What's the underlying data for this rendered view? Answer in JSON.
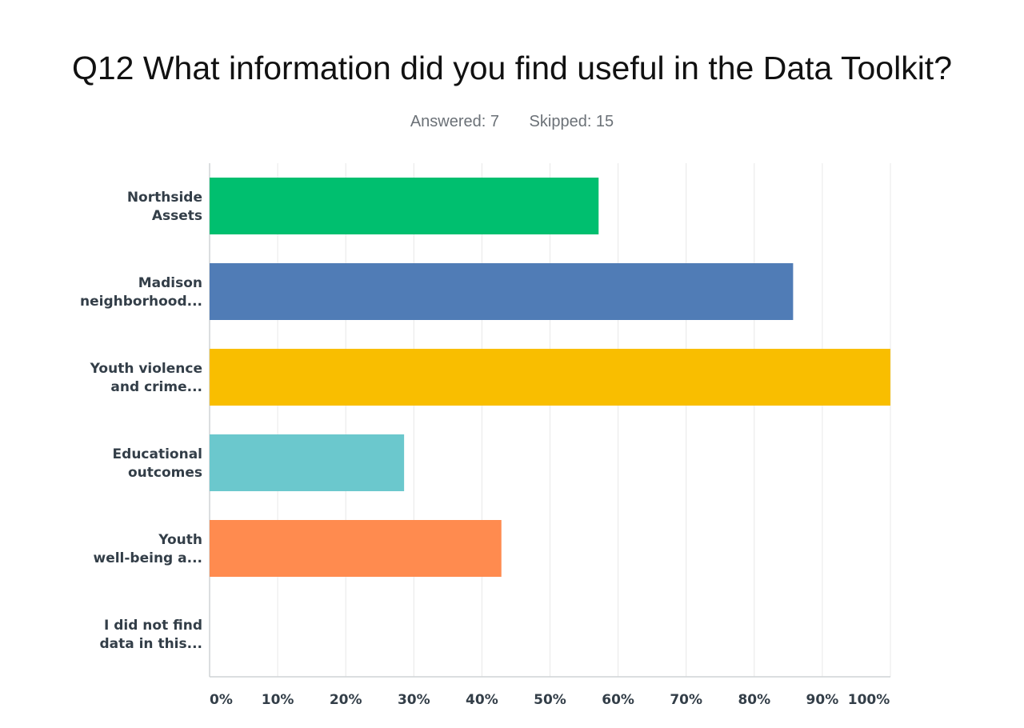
{
  "header": {
    "title": "Q12 What information did you find useful in the Data Toolkit?",
    "answered": "Answered: 7",
    "skipped": "Skipped: 15"
  },
  "chart_data": {
    "type": "bar",
    "orientation": "horizontal",
    "categories": [
      [
        "Northside",
        "Assets"
      ],
      [
        "Madison",
        "neighborhood..."
      ],
      [
        "Youth violence",
        "and crime..."
      ],
      [
        "Educational",
        "outcomes"
      ],
      [
        "Youth",
        "well-being a..."
      ],
      [
        "I did not find",
        "data in this..."
      ]
    ],
    "values": [
      57.14,
      85.71,
      100,
      28.57,
      42.86,
      0
    ],
    "colors": [
      "#00bf6f",
      "#507cb6",
      "#f9be00",
      "#6bc8cd",
      "#ff8b4f",
      "#cccccc"
    ],
    "xlim": [
      0,
      100
    ],
    "xticks": [
      "0%",
      "10%",
      "20%",
      "30%",
      "40%",
      "50%",
      "60%",
      "70%",
      "80%",
      "90%",
      "100%"
    ],
    "grid": true,
    "legend": "none"
  }
}
